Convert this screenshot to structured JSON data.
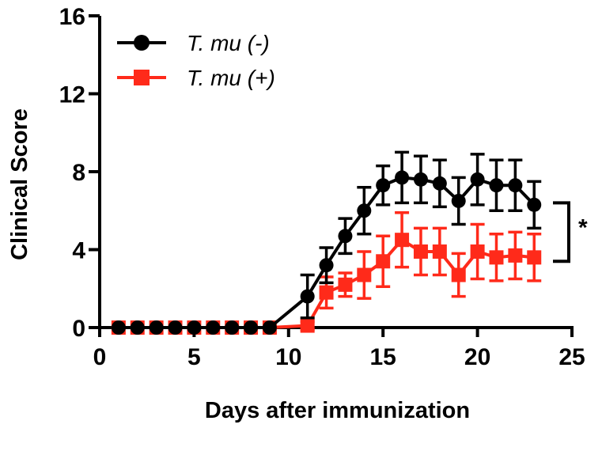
{
  "chart_data": {
    "type": "line",
    "xlabel": "Days after immunization",
    "ylabel": "Clinical  Score",
    "xlim": [
      0,
      25
    ],
    "ylim": [
      0,
      16
    ],
    "xticks": [
      "0",
      "5",
      "10",
      "15",
      "20",
      "25"
    ],
    "yticks": [
      "0",
      "4",
      "8",
      "12",
      "16"
    ],
    "xtick_values": [
      0,
      5,
      10,
      15,
      20,
      25
    ],
    "ytick_values": [
      0,
      4,
      8,
      12,
      16
    ],
    "grid": false,
    "legend_position": "top-left",
    "series": [
      {
        "name": "T. mu (-)",
        "color": "#000000",
        "marker": "circle",
        "x": [
          1,
          2,
          3,
          4,
          5,
          6,
          7,
          8,
          9,
          11,
          12,
          13,
          14,
          15,
          16,
          17,
          18,
          19,
          20,
          21,
          22,
          23
        ],
        "y": [
          0,
          0,
          0,
          0,
          0,
          0,
          0,
          0,
          0,
          1.6,
          3.2,
          4.7,
          6.0,
          7.3,
          7.7,
          7.6,
          7.4,
          6.5,
          7.6,
          7.3,
          7.3,
          6.3
        ],
        "err": [
          0,
          0,
          0,
          0,
          0,
          0,
          0,
          0,
          0,
          1.1,
          0.9,
          0.9,
          1.2,
          1.0,
          1.3,
          1.2,
          1.2,
          1.2,
          1.3,
          1.3,
          1.3,
          1.2
        ]
      },
      {
        "name": "T. mu (+)",
        "color": "#ff2a1a",
        "marker": "square",
        "x": [
          1,
          2,
          3,
          4,
          5,
          6,
          7,
          8,
          9,
          11,
          12,
          13,
          14,
          15,
          16,
          17,
          18,
          19,
          20,
          21,
          22,
          23
        ],
        "y": [
          0,
          0,
          0,
          0,
          0,
          0,
          0,
          0,
          0,
          0.1,
          1.8,
          2.2,
          2.7,
          3.4,
          4.5,
          3.9,
          3.9,
          2.7,
          3.9,
          3.6,
          3.7,
          3.6
        ],
        "err": [
          0,
          0,
          0,
          0,
          0,
          0,
          0,
          0,
          0,
          0.2,
          0.8,
          0.6,
          1.2,
          1.3,
          1.4,
          1.2,
          1.2,
          1.1,
          1.4,
          1.2,
          1.2,
          1.2
        ]
      }
    ],
    "annotations": [
      {
        "text": "*",
        "bracket_y_range": [
          3.4,
          6.4
        ]
      }
    ]
  }
}
